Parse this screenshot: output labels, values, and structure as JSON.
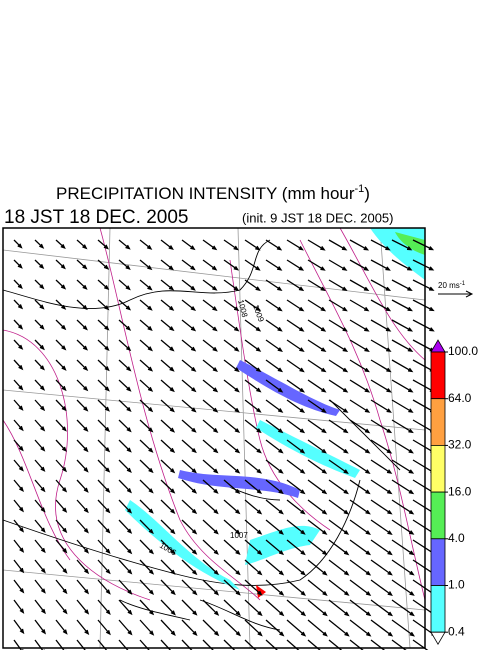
{
  "title": {
    "main": "PRECIPITATION INTENSITY (mm hour",
    "sup": "-1",
    "end": ")"
  },
  "time": "18 JST 18 DEC. 2005",
  "init": "(init. 9 JST 18 DEC. 2005)",
  "vector_key": {
    "label": "20 ms",
    "sup": "-1"
  },
  "colorbar": {
    "ticks": [
      {
        "value": 100,
        "label": "100.0"
      },
      {
        "value": 64,
        "label": "64.0"
      },
      {
        "value": 32,
        "label": "32.0"
      },
      {
        "value": 16,
        "label": "16.0"
      },
      {
        "value": 4,
        "label": "4.0"
      },
      {
        "value": 1,
        "label": "1.0"
      },
      {
        "value": 0.4,
        "label": "0.4"
      }
    ],
    "colors": [
      "#ff0000",
      "#ffa040",
      "#ffff66",
      "#55ee55",
      "#6666ff",
      "#55ffff"
    ],
    "over_color": "#aa00ee",
    "under_color": "#ffffff"
  },
  "contour_labels": [
    1008,
    1006,
    1007,
    1009
  ]
}
